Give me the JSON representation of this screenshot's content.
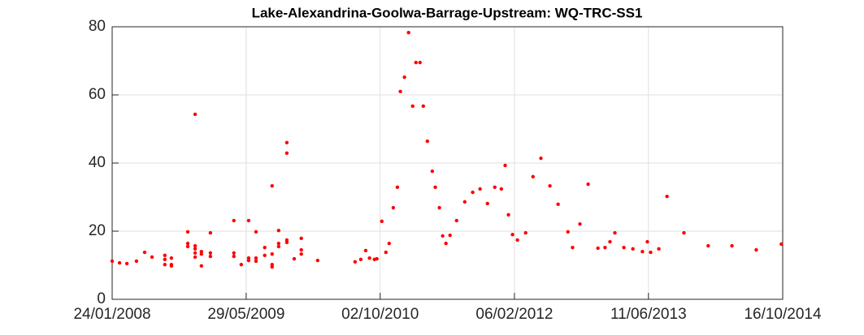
{
  "chart_data": {
    "type": "scatter",
    "title": "Lake-Alexandrina-Goolwa-Barrage-Upstream: WQ-TRC-SS1",
    "color": "#ff0000",
    "grid": true,
    "xlim": [
      "24/01/2008",
      "16/10/2014"
    ],
    "xticks": [
      "24/01/2008",
      "29/05/2009",
      "02/10/2010",
      "06/02/2012",
      "11/06/2013",
      "16/10/2014"
    ],
    "ylim": [
      0,
      80
    ],
    "yticks": [
      0,
      20,
      40,
      60,
      80
    ],
    "x": [
      "24/01/2008",
      "20/02/2008",
      "18/03/2008",
      "22/04/2008",
      "22/05/2008",
      "18/06/2008",
      "04/08/2008",
      "04/08/2008",
      "04/08/2008",
      "28/08/2008",
      "28/08/2008",
      "28/08/2008",
      "27/10/2008",
      "27/10/2008",
      "27/10/2008",
      "23/11/2008",
      "23/11/2008",
      "23/11/2008",
      "23/11/2008",
      "23/11/2008",
      "16/12/2008",
      "16/12/2008",
      "16/12/2008",
      "18/01/2009",
      "18/01/2009",
      "18/01/2009",
      "14/04/2009",
      "14/04/2009",
      "14/04/2009",
      "11/05/2009",
      "07/06/2009",
      "07/06/2009",
      "07/06/2009",
      "04/07/2009",
      "04/07/2009",
      "04/07/2009",
      "05/08/2009",
      "05/08/2009",
      "01/09/2009",
      "01/09/2009",
      "01/09/2009",
      "01/09/2009",
      "25/09/2009",
      "25/09/2009",
      "25/09/2009",
      "25/10/2009",
      "25/10/2009",
      "25/10/2009",
      "25/10/2009",
      "21/11/2009",
      "17/12/2009",
      "17/12/2009",
      "17/12/2009",
      "15/02/2010",
      "02/07/2010",
      "23/07/2010",
      "10/08/2010",
      "24/08/2010",
      "11/09/2010",
      "20/09/2010",
      "08/10/2010",
      "23/10/2010",
      "04/11/2010",
      "19/11/2010",
      "04/12/2010",
      "15/12/2010",
      "30/12/2010",
      "14/01/2011",
      "29/01/2011",
      "10/02/2011",
      "25/02/2011",
      "09/03/2011",
      "24/03/2011",
      "11/04/2011",
      "22/04/2011",
      "07/05/2011",
      "19/05/2011",
      "31/05/2011",
      "15/06/2011",
      "09/07/2011",
      "08/08/2011",
      "06/09/2011",
      "03/10/2011",
      "30/10/2011",
      "26/11/2011",
      "20/12/2011",
      "03/01/2012",
      "15/01/2012",
      "30/01/2012",
      "17/02/2012",
      "18/03/2012",
      "14/04/2012",
      "13/05/2012",
      "15/06/2012",
      "15/07/2012",
      "20/08/2012",
      "06/09/2012",
      "03/10/2012",
      "02/11/2012",
      "08/12/2012",
      "03/01/2013",
      "21/01/2013",
      "08/02/2013",
      "13/03/2013",
      "15/04/2013",
      "20/05/2013",
      "07/06/2013",
      "19/06/2013",
      "19/07/2013",
      "18/08/2013",
      "19/10/2013",
      "16/01/2014",
      "13/04/2014",
      "11/07/2014",
      "11/10/2014"
    ],
    "values": [
      11.2,
      10.7,
      10.5,
      11.2,
      13.8,
      12.4,
      12.9,
      11.7,
      10.2,
      12.1,
      10.2,
      9.8,
      19.8,
      16.4,
      15.5,
      54.3,
      15.7,
      14.8,
      13.6,
      12.4,
      14,
      13.3,
      9.8,
      19.5,
      13.6,
      12.6,
      23.1,
      13.6,
      12.6,
      10.2,
      23.1,
      12.1,
      11.4,
      19.8,
      12.1,
      11.2,
      15.2,
      12.9,
      33.3,
      13.3,
      10.2,
      9.5,
      20.2,
      16.4,
      15.5,
      46,
      42.9,
      17.4,
      16.7,
      11.9,
      17.9,
      14.5,
      13.3,
      11.4,
      11,
      11.7,
      14.3,
      12.1,
      11.7,
      11.9,
      22.9,
      13.8,
      16.4,
      26.9,
      32.9,
      61,
      65.2,
      78.3,
      56.7,
      69.5,
      69.5,
      56.7,
      46.4,
      37.6,
      32.9,
      26.9,
      18.6,
      16.4,
      18.8,
      23.1,
      28.6,
      31.4,
      32.4,
      28.1,
      32.9,
      32.4,
      39.3,
      24.8,
      19,
      17.4,
      19.5,
      36,
      41.4,
      33.3,
      27.9,
      19.8,
      15.2,
      22.1,
      33.8,
      15,
      15.2,
      16.9,
      19.5,
      15.2,
      14.8,
      14,
      16.9,
      13.8,
      14.8,
      30.2,
      19.5,
      15.7,
      15.7,
      14.5,
      16.2
    ]
  }
}
